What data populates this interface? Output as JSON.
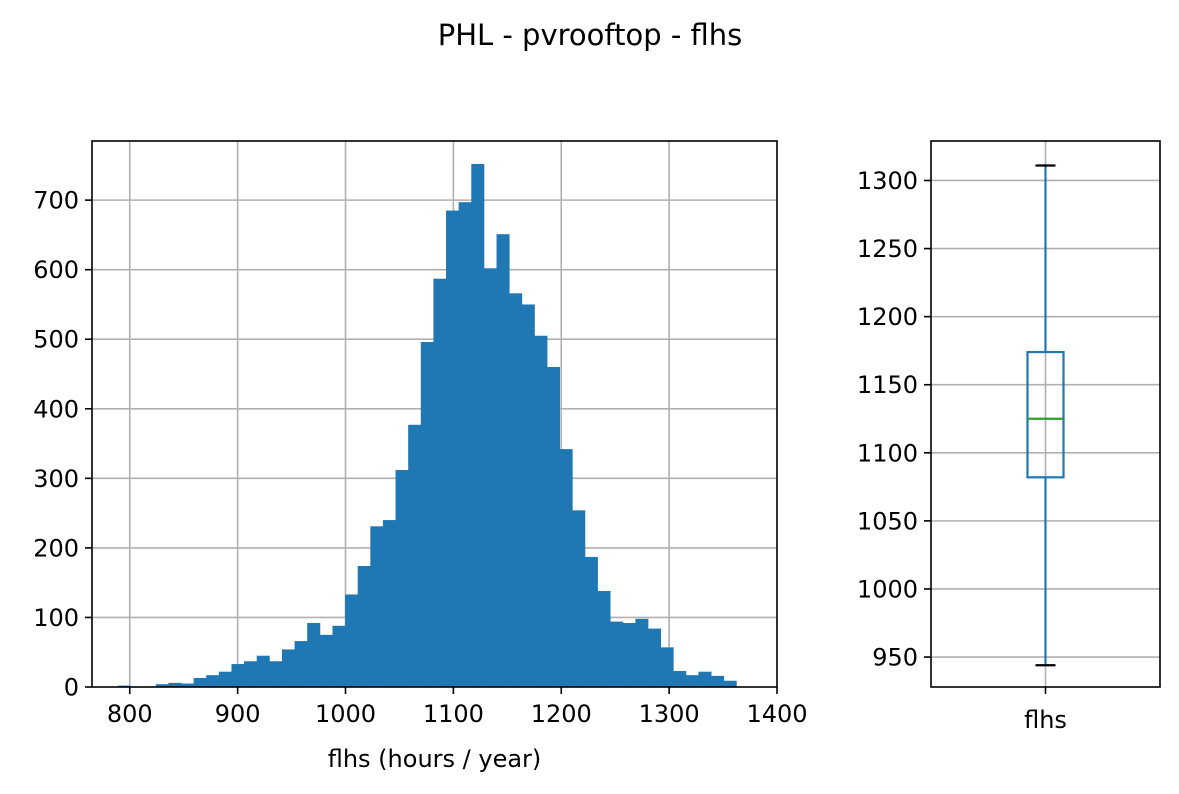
{
  "figure": {
    "suptitle": "PHL - pvrooftop - flhs"
  },
  "colors": {
    "bar": "#1f77b4",
    "box": "#1f77b4",
    "median": "#2ca02c",
    "caps": "#000000",
    "grid": "#b0b0b0",
    "axes": "#000000"
  },
  "chart_data": [
    {
      "type": "bar",
      "title": "",
      "xlabel": "flhs (hours / year)",
      "ylabel": "",
      "grid": true,
      "xlim": [
        765,
        1400
      ],
      "ylim": [
        0,
        785
      ],
      "xticks": [
        800,
        900,
        1000,
        1100,
        1200,
        1300,
        1400
      ],
      "yticks": [
        0,
        100,
        200,
        300,
        400,
        500,
        600,
        700
      ],
      "bin_start": 789,
      "bin_width": 11.7,
      "values": [
        2,
        0,
        0,
        4,
        6,
        5,
        13,
        17,
        22,
        33,
        37,
        45,
        37,
        54,
        66,
        92,
        75,
        88,
        133,
        174,
        231,
        240,
        312,
        377,
        496,
        587,
        685,
        697,
        752,
        602,
        651,
        566,
        550,
        505,
        460,
        342,
        254,
        187,
        138,
        94,
        92,
        98,
        84,
        57,
        23,
        17,
        22,
        16,
        9
      ]
    },
    {
      "type": "box",
      "title": "",
      "xlabel": "",
      "ylabel": "",
      "grid": true,
      "categories": [
        "flhs"
      ],
      "ylim": [
        928,
        1329
      ],
      "yticks": [
        950,
        1000,
        1050,
        1100,
        1150,
        1200,
        1250,
        1300
      ],
      "whisker_low": 944,
      "q1": 1082,
      "median": 1125,
      "q3": 1174,
      "whisker_high": 1311
    }
  ]
}
